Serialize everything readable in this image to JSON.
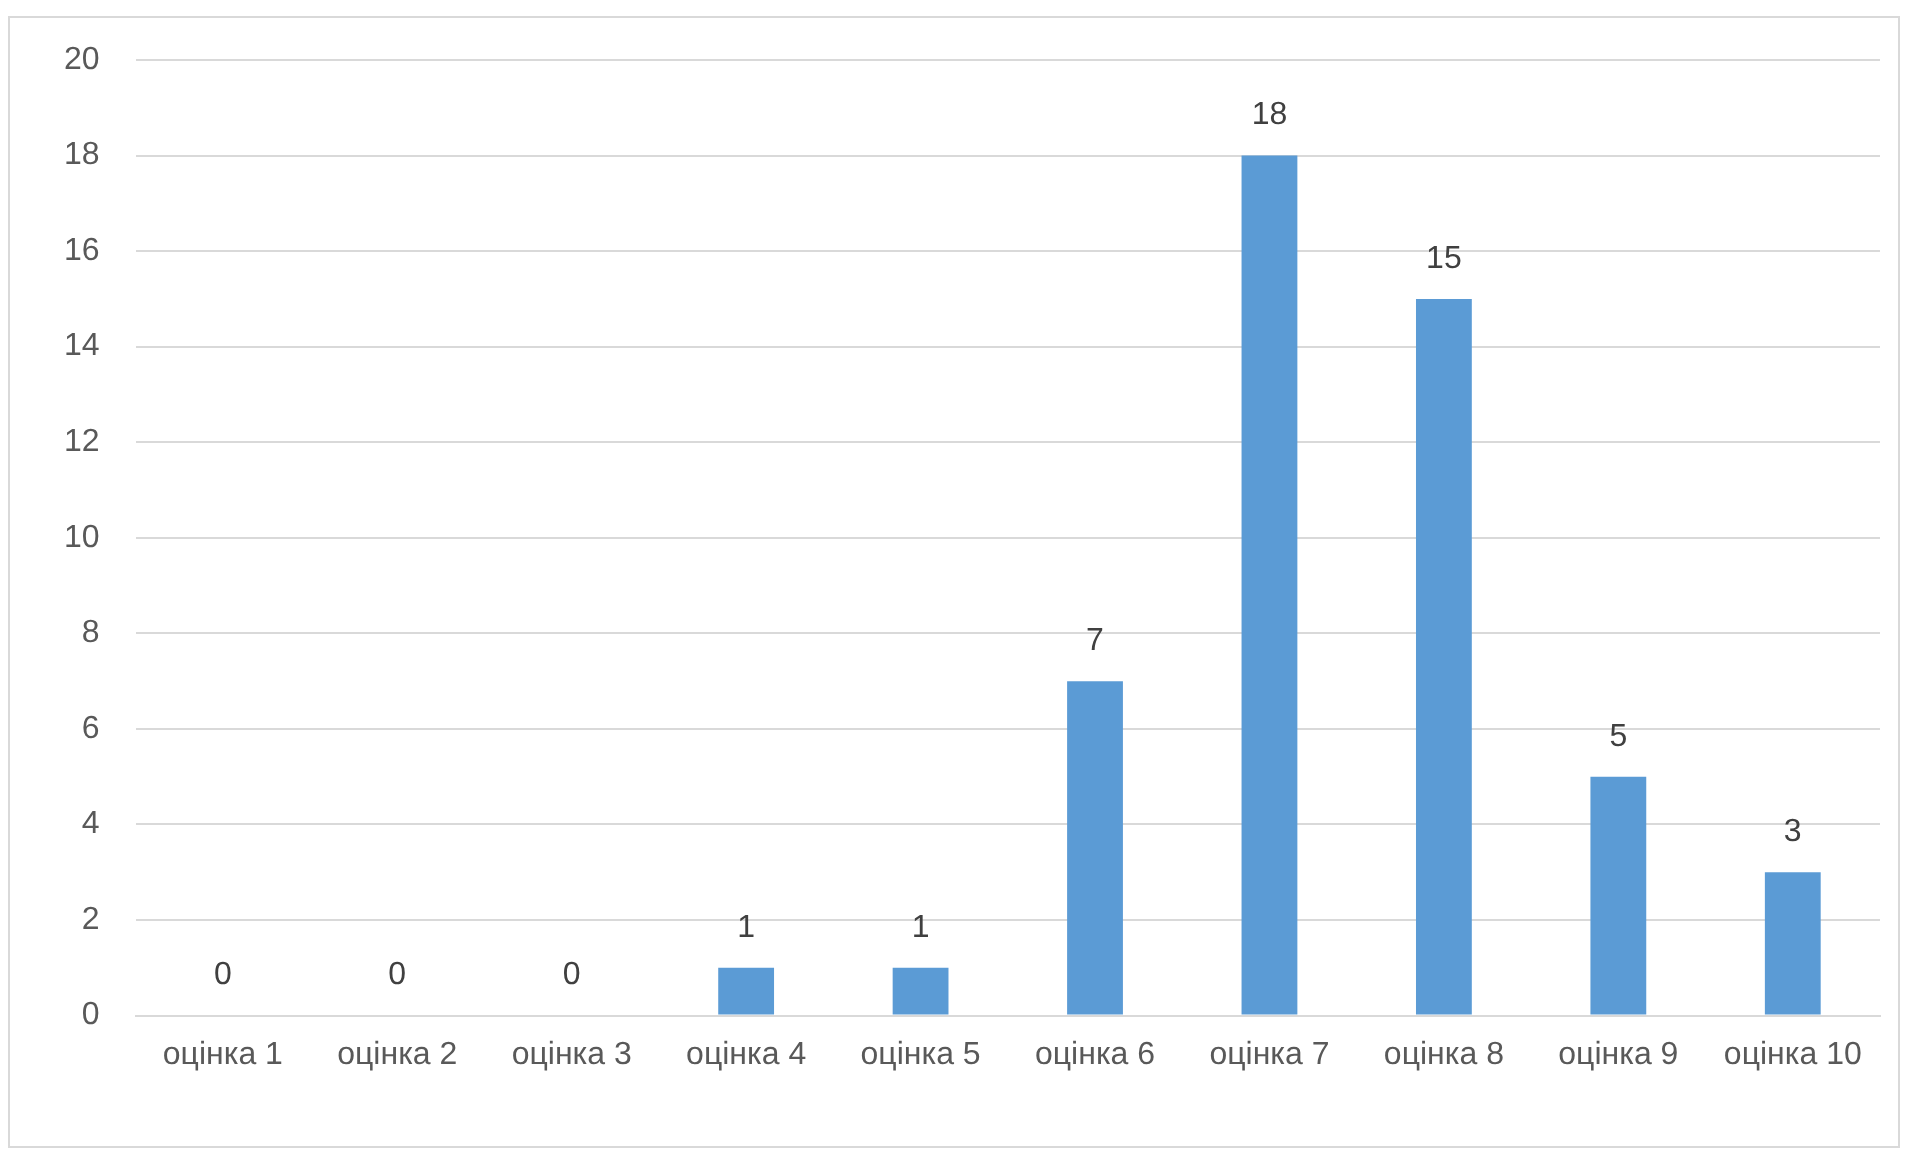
{
  "chart_data": {
    "type": "bar",
    "categories": [
      "оцінка 1",
      "оцінка 2",
      "оцінка 3",
      "оцінка 4",
      "оцінка 5",
      "оцінка 6",
      "оцінка 7",
      "оцінка 8",
      "оцінка 9",
      "оцінка 10"
    ],
    "values": [
      0,
      0,
      0,
      1,
      1,
      7,
      18,
      15,
      5,
      3
    ],
    "color": "#5b9bd5",
    "ylim": [
      0,
      20
    ],
    "yticks": [
      0,
      2,
      4,
      6,
      8,
      10,
      12,
      14,
      16,
      18,
      20
    ],
    "grid": "y",
    "data_labels": true,
    "legend": false
  }
}
